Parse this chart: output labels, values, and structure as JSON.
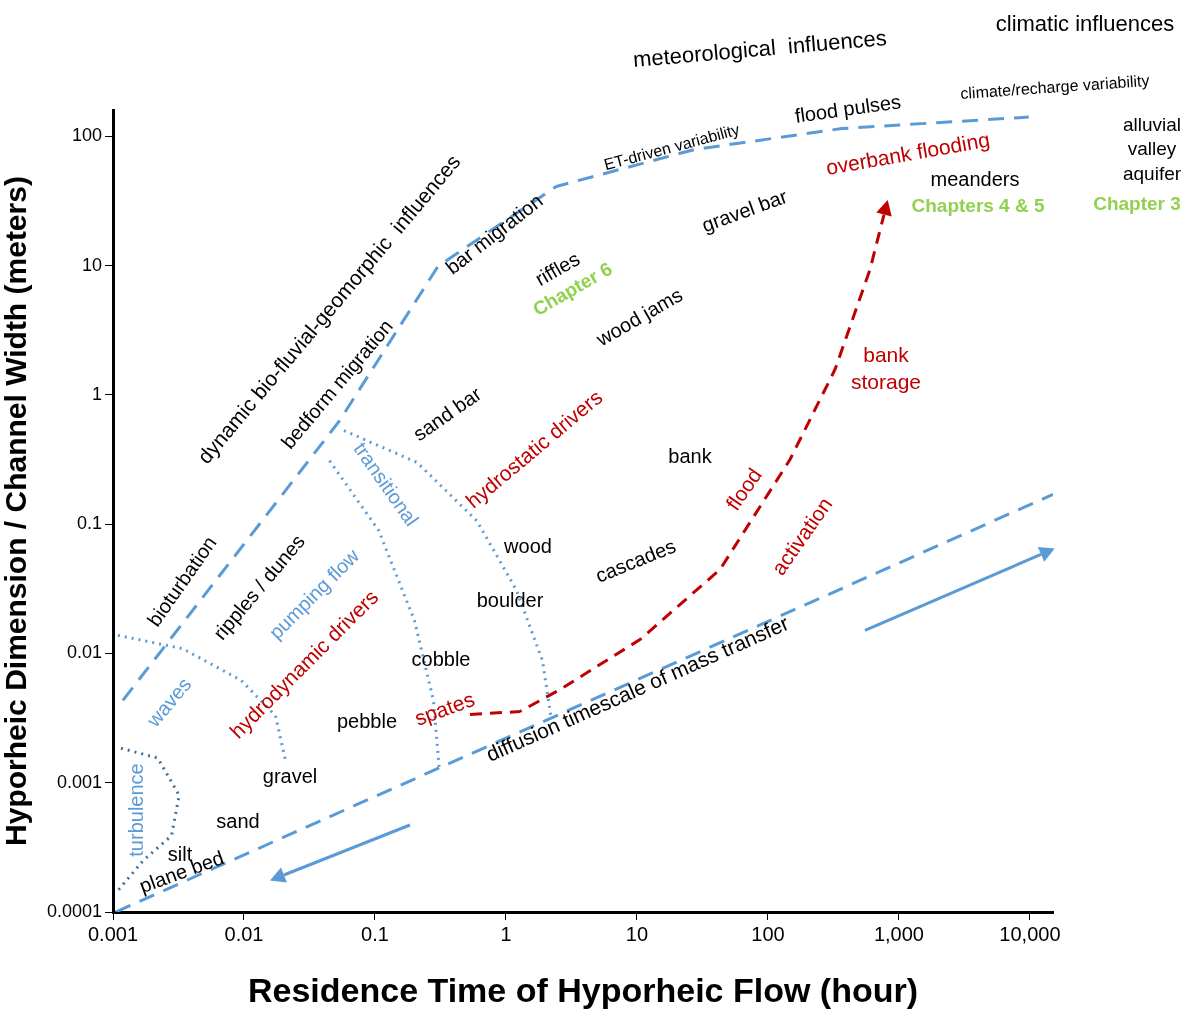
{
  "chart_data": {
    "type": "line",
    "xlabel": "Residence Time of Hyporheic Flow (hour)",
    "ylabel": "Hyporheic Dimension / Channel Width (meters)",
    "log": "xy",
    "xlim": [
      0.001,
      15000
    ],
    "ylim": [
      0.0001,
      160
    ],
    "xticks": [
      0.001,
      0.01,
      0.1,
      1,
      10,
      100,
      {
        "value": 1000,
        "label": "1,000"
      },
      {
        "value": 10000,
        "label": "10,000"
      }
    ],
    "yticks": [
      0.0001,
      0.001,
      0.01,
      0.1,
      1,
      10,
      100
    ],
    "grid": false,
    "legend": false,
    "marker": "none",
    "series": [
      {
        "color": "#5b9bd5",
        "line_style": "dashed",
        "x": [
          0.00119,
          0.00798,
          0.0536,
          0.303,
          2.42,
          27.3,
          366,
          9800
        ],
        "values": [
          0.00434,
          0.0522,
          0.631,
          9.9,
          41,
          79,
          115,
          141
        ]
      },
      {
        "color": "#5b9bd5",
        "line_style": "dashed",
        "x": [
          0.00105,
          15000
        ],
        "values": [
          0.0001,
          0.17
        ]
      },
      {
        "color": "#5b9bd5",
        "line_style": "dotted",
        "x": [
          0.058,
          0.21,
          0.6,
          1.2,
          1.9,
          2.2
        ],
        "values": [
          0.53,
          0.3,
          0.106,
          0.031,
          0.0088,
          0.0033
        ]
      },
      {
        "color": "#5b9bd5",
        "line_style": "dotted",
        "x": [
          0.045,
          0.107,
          0.2,
          0.28,
          0.31
        ],
        "values": [
          0.31,
          0.089,
          0.018,
          0.0043,
          0.00125
        ]
      },
      {
        "color": "#5b9bd5",
        "line_style": "dotted",
        "x": [
          0.00109,
          0.0034,
          0.0095,
          0.0174,
          0.0207
        ],
        "values": [
          0.0138,
          0.0109,
          0.0062,
          0.0033,
          0.0015
        ]
      },
      {
        "color": "#41719c",
        "line_style": "dotted",
        "x": [
          0.00115,
          0.0022,
          0.0032,
          0.0028,
          0.0017,
          0.00105
        ],
        "values": [
          0.00185,
          0.00155,
          0.0008,
          0.00039,
          0.00025,
          0.00014
        ]
      }
    ],
    "annotations": [
      "dynamic bio-fluvial-geomorphic  influences",
      "bedform migration",
      "bar migration",
      "ET-driven variability",
      "flood pulses",
      "overbank flooding",
      "meanders",
      "Chapters 4 & 5",
      "gravel bar",
      "riffles",
      "Chapter 6",
      "wood jams",
      "bank\nstorage",
      "sand bar",
      "hydrostatic drivers",
      "transitional",
      "bank",
      "flood",
      "activation",
      "wood",
      "cascades",
      "boulder",
      "bioturbation",
      "ripples / dunes",
      "pumping flow",
      "hydrodynamic drivers",
      "cobble",
      "waves",
      "pebble",
      "spates",
      "diffusion timescale of mass transfer",
      "gravel",
      "sand",
      "silt",
      "plane bed",
      "turbulence",
      "meteorological  influences",
      "climatic influences",
      "climate/recharge variability",
      "alluvial\nvalley\naquifer",
      "Chapter 3"
    ]
  }
}
